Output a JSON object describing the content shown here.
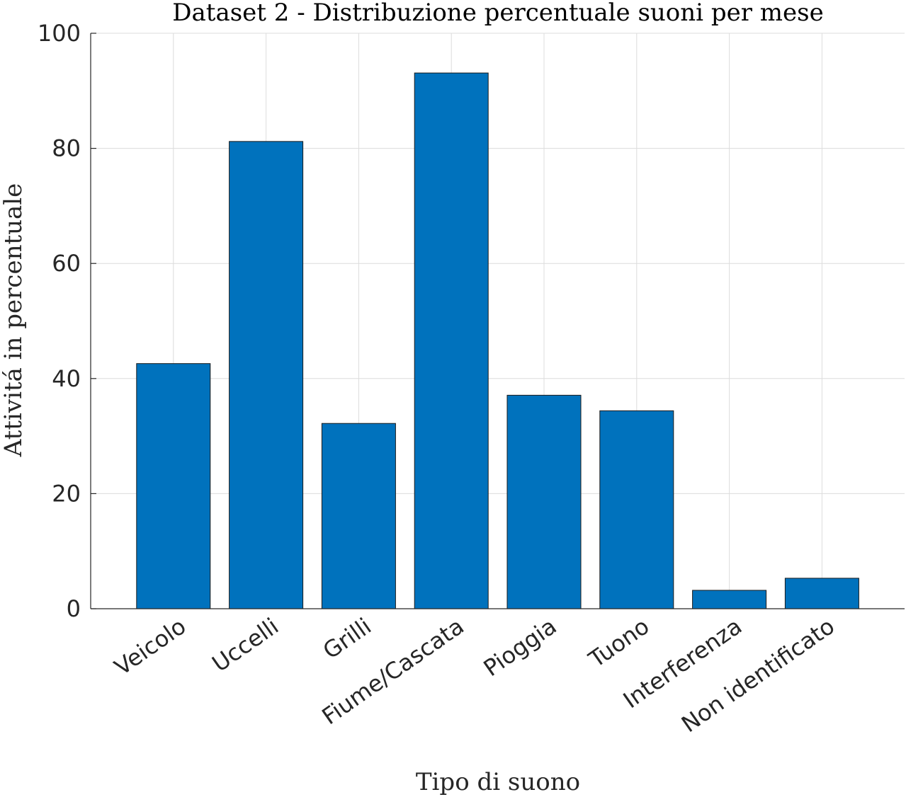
{
  "chart_data": {
    "type": "bar",
    "title": "Dataset 2 - Distribuzione percentuale suoni per mese",
    "xlabel": "Tipo di suono",
    "ylabel": "Attivitá in percentuale",
    "categories": [
      "Veicolo",
      "Uccelli",
      "Grilli",
      "Fiume/Cascata",
      "Pioggia",
      "Tuono",
      "Interferenza",
      "Non identificato"
    ],
    "values": [
      42.6,
      81.2,
      32.2,
      93.1,
      37.1,
      34.4,
      3.2,
      5.3
    ],
    "ylim": [
      0,
      100
    ],
    "yticks": [
      0,
      20,
      40,
      60,
      80,
      100
    ],
    "ytick_labels": [
      "0",
      "20",
      "40",
      "60",
      "80",
      "100"
    ],
    "grid": true,
    "legend": "none",
    "bar_color": "#0072BD"
  }
}
